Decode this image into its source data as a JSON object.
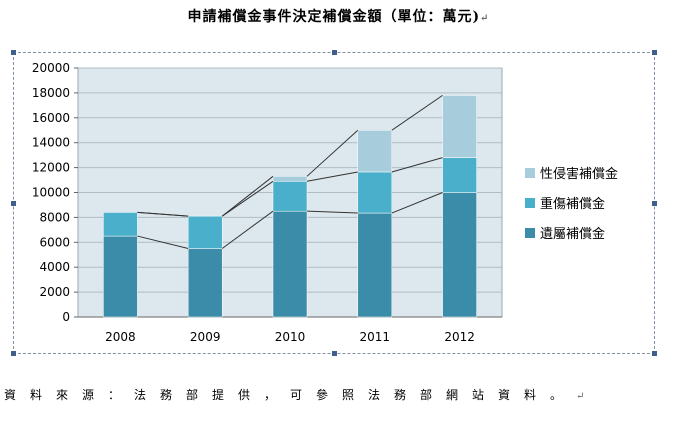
{
  "title": "申請補償金事件決定補償金額（單位：萬元)",
  "source_note": "資料來源：法務部提供，可參照法務部網站資料。",
  "chart_data": {
    "type": "bar",
    "stacked": true,
    "series_lines": true,
    "title": "",
    "xlabel": "",
    "ylabel": "",
    "categories": [
      "2008",
      "2009",
      "2010",
      "2011",
      "2012"
    ],
    "ylim": [
      0,
      20000
    ],
    "yticks": [
      0,
      2000,
      4000,
      6000,
      8000,
      10000,
      12000,
      14000,
      16000,
      18000,
      20000
    ],
    "grid": true,
    "legend_position": "right",
    "series": [
      {
        "name": "遺屬補償金",
        "values": [
          6500,
          5500,
          8500,
          8350,
          10000
        ],
        "color": "#3a8ca8"
      },
      {
        "name": "重傷補償金",
        "values": [
          1900,
          2600,
          2400,
          3300,
          2800
        ],
        "color": "#4aafca"
      },
      {
        "name": "性侵害補償金",
        "values": [
          0,
          0,
          400,
          3350,
          5000
        ],
        "color": "#a7cddd"
      }
    ]
  }
}
